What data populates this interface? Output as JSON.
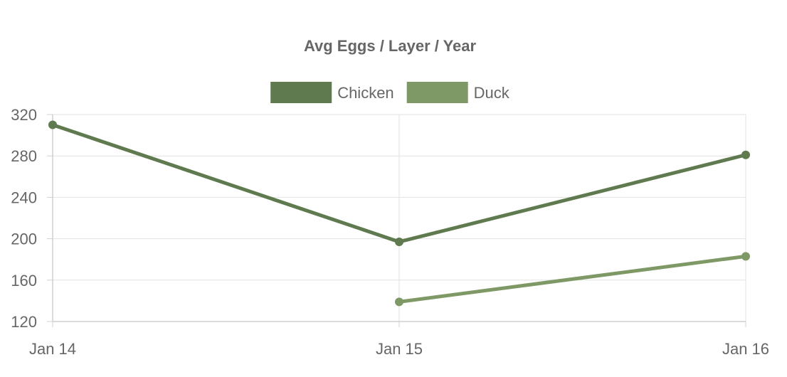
{
  "chart_data": {
    "type": "line",
    "title": "Avg Eggs / Layer / Year",
    "xlabel": "",
    "ylabel": "",
    "categories": [
      "Jan 14",
      "Jan 15",
      "Jan 16"
    ],
    "ylim": [
      120,
      320
    ],
    "yticks": [
      120,
      160,
      200,
      240,
      280,
      320
    ],
    "grid": true,
    "legend_position": "top",
    "series": [
      {
        "name": "Chicken",
        "color": "#5f7a4f",
        "values": [
          310,
          197,
          281
        ]
      },
      {
        "name": "Duck",
        "color": "#7f9966",
        "values": [
          null,
          139,
          183
        ]
      }
    ]
  }
}
